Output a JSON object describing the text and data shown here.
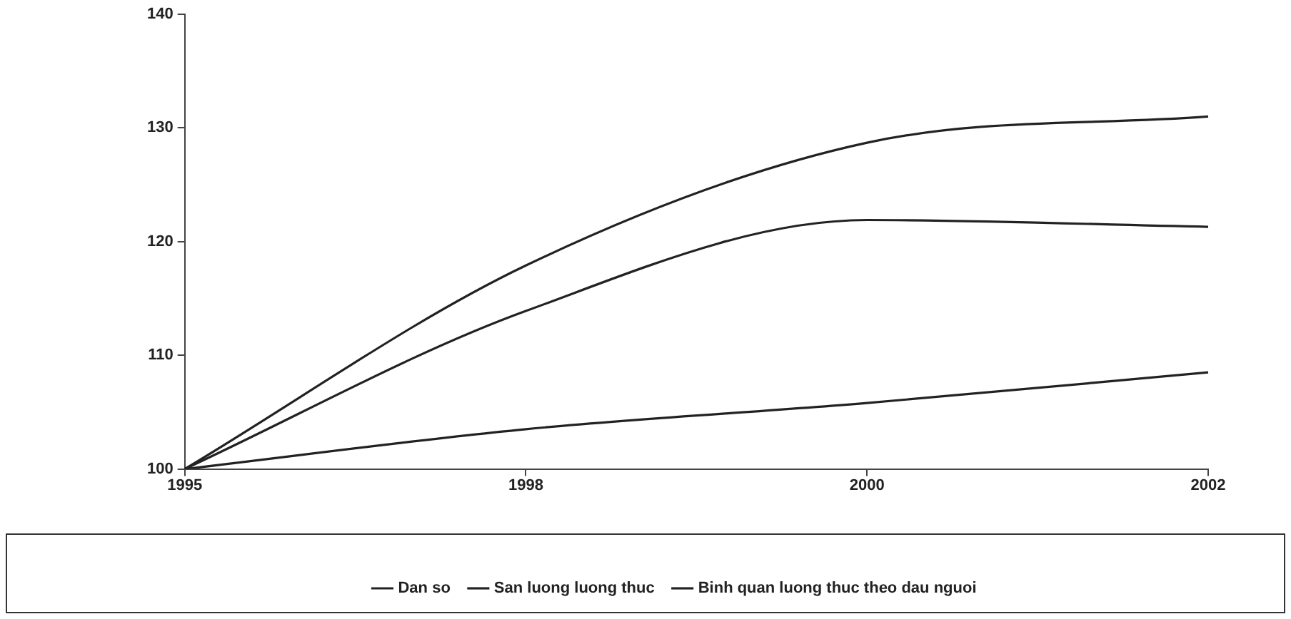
{
  "chart_data": {
    "type": "line",
    "categories": [
      "1995",
      "1998",
      "2000",
      "2002"
    ],
    "series": [
      {
        "name": "Dan so",
        "color": "#222222",
        "values": [
          100,
          103.5,
          105.8,
          108.5
        ]
      },
      {
        "name": "San luong luong thuc",
        "color": "#222222",
        "values": [
          100,
          117.9,
          128.7,
          131
        ]
      },
      {
        "name": "Binh quan luong thuc theo dau nguoi",
        "color": "#222222",
        "values": [
          100,
          113.9,
          121.9,
          121.3
        ]
      }
    ],
    "ylim": [
      100,
      140
    ],
    "yticks": [
      100,
      110,
      120,
      130,
      140
    ],
    "grid": false,
    "legend": "bottom",
    "marker": "none",
    "line_style": "solid"
  }
}
